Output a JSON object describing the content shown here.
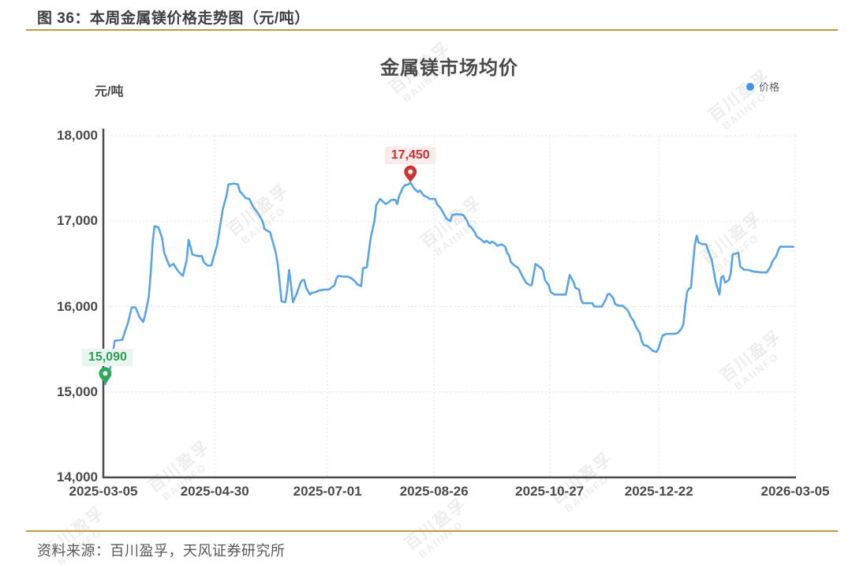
{
  "page": {
    "caption": "图 36：本周金属镁价格走势图（元/吨）",
    "source": "资料来源：百川盈孚，天风证券研究所",
    "rule_color": "#C9983E"
  },
  "chart_data": {
    "type": "line",
    "title": "金属镁市场均价",
    "unit_label": "元/吨",
    "legend": {
      "label": "价格",
      "dot_color": "#3D96E8",
      "position": "top-right"
    },
    "line_color": "#5AA4E8",
    "grid": "dotted",
    "ylim": [
      14000,
      18000
    ],
    "y_ticks": [
      {
        "value": 14000,
        "label": "14,000"
      },
      {
        "value": 15000,
        "label": "15,000"
      },
      {
        "value": 16000,
        "label": "16,000"
      },
      {
        "value": 17000,
        "label": "17,000"
      },
      {
        "value": 18000,
        "label": "18,000"
      }
    ],
    "x_start_date": "2025-03-05",
    "x_days_total": 365,
    "x_ticks": [
      {
        "label": "2025-03-05",
        "f": 0
      },
      {
        "label": "2025-04-30",
        "f": 0.161
      },
      {
        "label": "2025-07-01",
        "f": 0.324
      },
      {
        "label": "2025-08-26",
        "f": 0.478
      },
      {
        "label": "2025-10-27",
        "f": 0.645
      },
      {
        "label": "2025-12-22",
        "f": 0.803
      },
      {
        "label": "2026-03-05",
        "f": 1
      }
    ],
    "annotations": {
      "max": {
        "label": "17,450",
        "value": 17450,
        "day": 162,
        "text_color": "#C43431",
        "bg_color": "#FAECEC",
        "pin_color": "#CF3530"
      },
      "min": {
        "label": "15,090",
        "value": 15090,
        "day": 1,
        "text_color": "#2E9E59",
        "bg_color": "#E9F5EE",
        "pin_color": "#2FA75C"
      }
    },
    "watermark_text": "百川盈孚",
    "watermark_subtext": "BAIINFO",
    "series": [
      {
        "name": "价格",
        "points": [
          [
            1,
            15090
          ],
          [
            3,
            15200
          ],
          [
            5,
            15450
          ],
          [
            6,
            15600
          ],
          [
            10,
            15610
          ],
          [
            13,
            15810
          ],
          [
            15,
            15990
          ],
          [
            17,
            15990
          ],
          [
            19,
            15880
          ],
          [
            21,
            15820
          ],
          [
            22,
            15900
          ],
          [
            24,
            16120
          ],
          [
            25,
            16400
          ],
          [
            26,
            16750
          ],
          [
            27,
            16940
          ],
          [
            29,
            16930
          ],
          [
            31,
            16800
          ],
          [
            32,
            16640
          ],
          [
            34,
            16520
          ],
          [
            35,
            16470
          ],
          [
            37,
            16500
          ],
          [
            39,
            16430
          ],
          [
            40,
            16400
          ],
          [
            42,
            16360
          ],
          [
            44,
            16550
          ],
          [
            45,
            16780
          ],
          [
            46,
            16700
          ],
          [
            47,
            16610
          ],
          [
            50,
            16590
          ],
          [
            52,
            16590
          ],
          [
            53,
            16520
          ],
          [
            55,
            16480
          ],
          [
            57,
            16480
          ],
          [
            58,
            16570
          ],
          [
            60,
            16720
          ],
          [
            62,
            17000
          ],
          [
            63,
            17140
          ],
          [
            65,
            17300
          ],
          [
            66,
            17430
          ],
          [
            69,
            17440
          ],
          [
            71,
            17430
          ],
          [
            72,
            17350
          ],
          [
            74,
            17300
          ],
          [
            75,
            17270
          ],
          [
            77,
            17260
          ],
          [
            79,
            17170
          ],
          [
            82,
            17080
          ],
          [
            84,
            17000
          ],
          [
            85,
            16910
          ],
          [
            87,
            16880
          ],
          [
            88,
            16870
          ],
          [
            89,
            16790
          ],
          [
            91,
            16630
          ],
          [
            92,
            16490
          ],
          [
            93,
            16280
          ],
          [
            94,
            16060
          ],
          [
            96,
            16050
          ],
          [
            97,
            16200
          ],
          [
            98,
            16430
          ],
          [
            99,
            16250
          ],
          [
            100,
            16050
          ],
          [
            102,
            16150
          ],
          [
            104,
            16280
          ],
          [
            105,
            16310
          ],
          [
            106,
            16310
          ],
          [
            107,
            16220
          ],
          [
            109,
            16140
          ],
          [
            110,
            16160
          ],
          [
            112,
            16170
          ],
          [
            114,
            16190
          ],
          [
            117,
            16200
          ],
          [
            119,
            16200
          ],
          [
            122,
            16250
          ],
          [
            123,
            16330
          ],
          [
            124,
            16360
          ],
          [
            127,
            16350
          ],
          [
            129,
            16350
          ],
          [
            131,
            16330
          ],
          [
            133,
            16290
          ],
          [
            134,
            16260
          ],
          [
            136,
            16240
          ],
          [
            137,
            16450
          ],
          [
            139,
            16460
          ],
          [
            140,
            16630
          ],
          [
            141,
            16800
          ],
          [
            143,
            17000
          ],
          [
            144,
            17190
          ],
          [
            146,
            17260
          ],
          [
            147,
            17240
          ],
          [
            149,
            17200
          ],
          [
            151,
            17230
          ],
          [
            152,
            17250
          ],
          [
            154,
            17250
          ],
          [
            155,
            17200
          ],
          [
            156,
            17290
          ],
          [
            158,
            17390
          ],
          [
            159,
            17420
          ],
          [
            161,
            17430
          ],
          [
            162,
            17450
          ],
          [
            163,
            17420
          ],
          [
            164,
            17380
          ],
          [
            166,
            17340
          ],
          [
            167,
            17360
          ],
          [
            168,
            17330
          ],
          [
            169,
            17300
          ],
          [
            171,
            17280
          ],
          [
            172,
            17260
          ],
          [
            175,
            17260
          ],
          [
            176,
            17200
          ],
          [
            178,
            17150
          ],
          [
            180,
            17070
          ],
          [
            181,
            17030
          ],
          [
            183,
            17000
          ],
          [
            184,
            17070
          ],
          [
            186,
            17080
          ],
          [
            188,
            17080
          ],
          [
            190,
            17070
          ],
          [
            192,
            17000
          ],
          [
            193,
            16940
          ],
          [
            194,
            16930
          ],
          [
            196,
            16870
          ],
          [
            197,
            16820
          ],
          [
            199,
            16790
          ],
          [
            201,
            16750
          ],
          [
            202,
            16770
          ],
          [
            204,
            16740
          ],
          [
            205,
            16760
          ],
          [
            206,
            16750
          ],
          [
            208,
            16710
          ],
          [
            210,
            16730
          ],
          [
            212,
            16700
          ],
          [
            213,
            16630
          ],
          [
            214,
            16600
          ],
          [
            215,
            16520
          ],
          [
            217,
            16480
          ],
          [
            219,
            16450
          ],
          [
            221,
            16360
          ],
          [
            223,
            16280
          ],
          [
            225,
            16250
          ],
          [
            226,
            16250
          ],
          [
            228,
            16500
          ],
          [
            231,
            16450
          ],
          [
            232,
            16420
          ],
          [
            233,
            16310
          ],
          [
            235,
            16250
          ],
          [
            236,
            16170
          ],
          [
            238,
            16140
          ],
          [
            241,
            16140
          ],
          [
            244,
            16140
          ],
          [
            246,
            16370
          ],
          [
            248,
            16290
          ],
          [
            249,
            16220
          ],
          [
            251,
            16200
          ],
          [
            252,
            16080
          ],
          [
            253,
            16040
          ],
          [
            256,
            16040
          ],
          [
            258,
            16040
          ],
          [
            259,
            16000
          ],
          [
            261,
            16000
          ],
          [
            263,
            16000
          ],
          [
            265,
            16080
          ],
          [
            266,
            16140
          ],
          [
            267,
            16150
          ],
          [
            269,
            16100
          ],
          [
            270,
            16030
          ],
          [
            272,
            16010
          ],
          [
            274,
            16010
          ],
          [
            276,
            15970
          ],
          [
            277,
            15940
          ],
          [
            278,
            15890
          ],
          [
            280,
            15820
          ],
          [
            281,
            15760
          ],
          [
            283,
            15690
          ],
          [
            284,
            15600
          ],
          [
            285,
            15550
          ],
          [
            287,
            15540
          ],
          [
            288,
            15520
          ],
          [
            290,
            15480
          ],
          [
            292,
            15470
          ],
          [
            293,
            15520
          ],
          [
            294,
            15590
          ],
          [
            295,
            15660
          ],
          [
            297,
            15680
          ],
          [
            299,
            15680
          ],
          [
            301,
            15680
          ],
          [
            303,
            15690
          ],
          [
            305,
            15740
          ],
          [
            306,
            15790
          ],
          [
            307,
            16000
          ],
          [
            308,
            16170
          ],
          [
            309,
            16210
          ],
          [
            310,
            16220
          ],
          [
            311,
            16480
          ],
          [
            312,
            16720
          ],
          [
            313,
            16830
          ],
          [
            314,
            16750
          ],
          [
            316,
            16730
          ],
          [
            318,
            16730
          ],
          [
            319,
            16660
          ],
          [
            321,
            16540
          ],
          [
            322,
            16420
          ],
          [
            323,
            16290
          ],
          [
            325,
            16140
          ],
          [
            326,
            16340
          ],
          [
            327,
            16360
          ],
          [
            328,
            16280
          ],
          [
            330,
            16310
          ],
          [
            331,
            16390
          ],
          [
            332,
            16610
          ],
          [
            335,
            16630
          ],
          [
            336,
            16470
          ],
          [
            338,
            16430
          ],
          [
            340,
            16430
          ],
          [
            343,
            16410
          ],
          [
            347,
            16400
          ],
          [
            350,
            16400
          ],
          [
            352,
            16470
          ],
          [
            353,
            16530
          ],
          [
            355,
            16590
          ],
          [
            356,
            16660
          ],
          [
            357,
            16700
          ],
          [
            362,
            16700
          ],
          [
            364,
            16700
          ]
        ]
      }
    ]
  }
}
